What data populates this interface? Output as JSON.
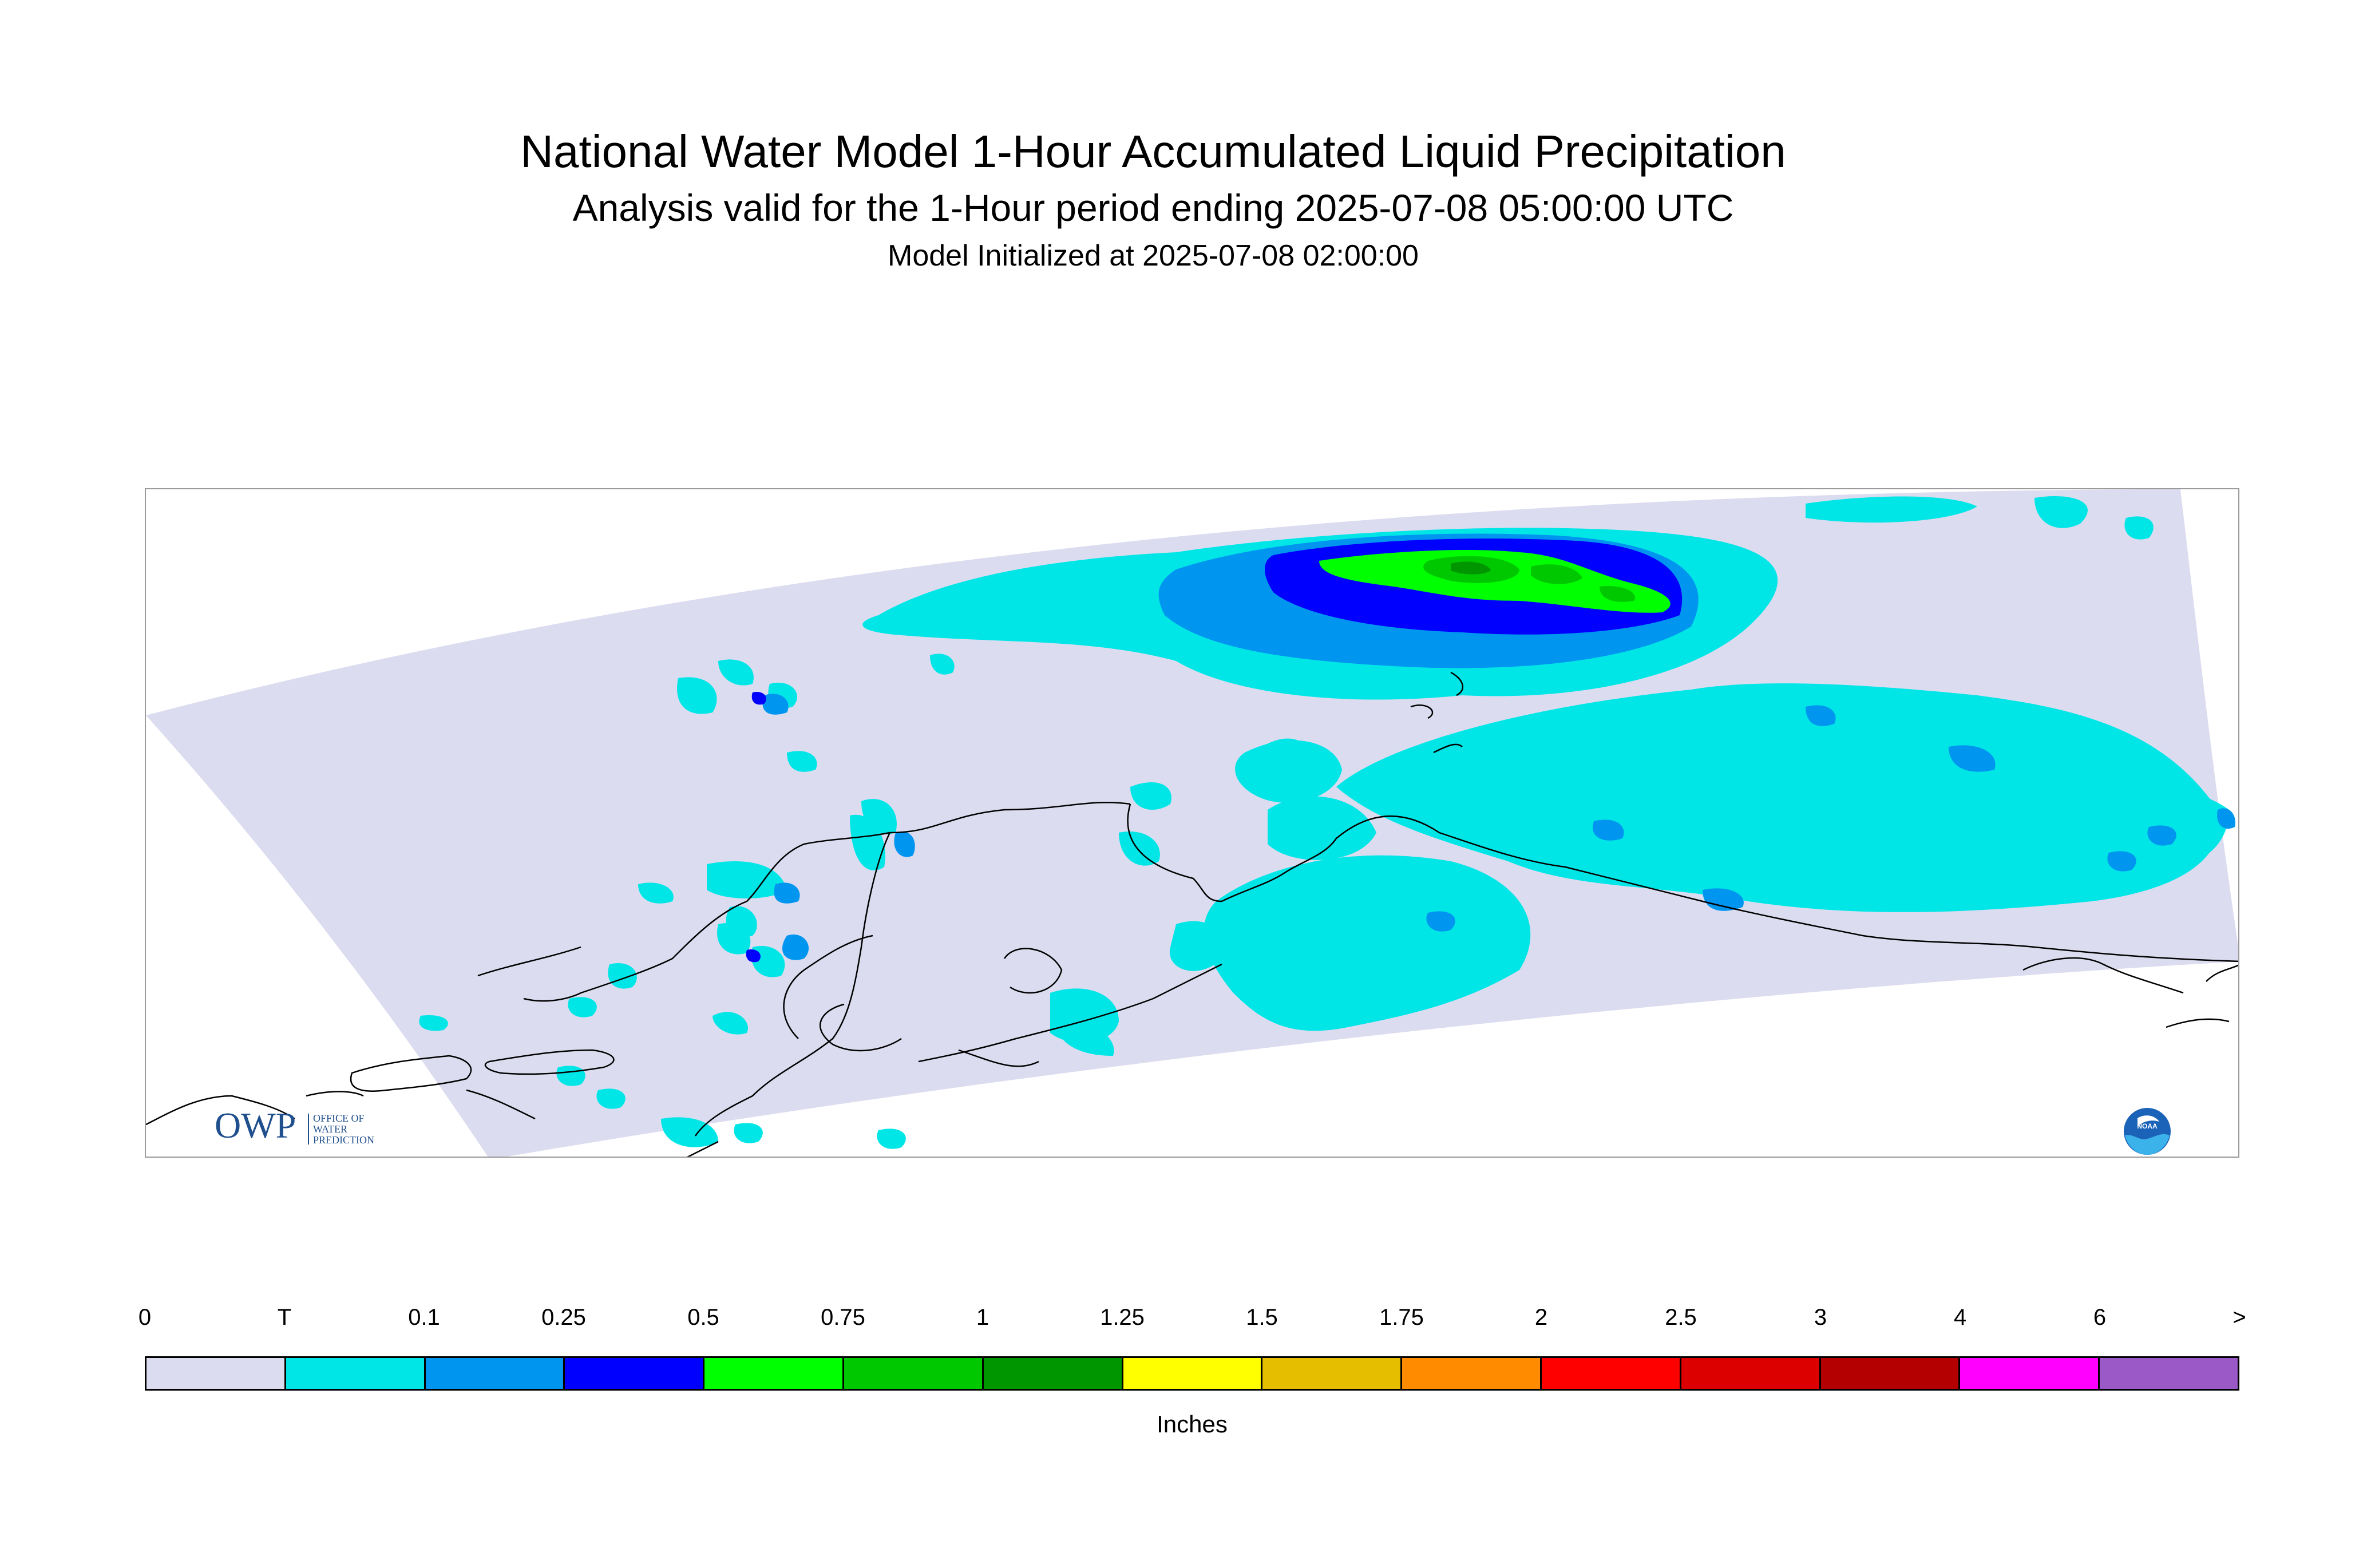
{
  "title": {
    "main": "National Water Model 1-Hour Accumulated Liquid Precipitation",
    "analysis": "Analysis valid for the 1-Hour period ending 2025-07-08 05:00:00 UTC",
    "initialized": "Model Initialized at 2025-07-08 02:00:00"
  },
  "logos": {
    "owp": "OWP",
    "owp_sub": [
      "OFFICE OF",
      "WATER",
      "PREDICTION"
    ],
    "noaa": "NOAA"
  },
  "legend": {
    "units": "Inches",
    "labels": [
      "0",
      "T",
      "0.1",
      "0.25",
      "0.5",
      "0.75",
      "1",
      "1.25",
      "1.5",
      "1.75",
      "2",
      "2.5",
      "3",
      "4",
      "6",
      ">"
    ],
    "colors": [
      "#dcdcf0",
      "#00e6e6",
      "#0096f0",
      "#0000ff",
      "#00ff00",
      "#00c800",
      "#009600",
      "#ffff00",
      "#e6be00",
      "#ff8c00",
      "#ff0000",
      "#dc0000",
      "#b40000",
      "#ff00ff",
      "#9b59c8"
    ]
  },
  "colors": {
    "domain_background": "#dcdcf0",
    "trace": "#00e6e6",
    "light_blue": "#0096f0",
    "blue": "#0000ff",
    "green": "#00ff00",
    "mid_green": "#00c800",
    "dark_green": "#009600",
    "coastline": "#000000"
  }
}
